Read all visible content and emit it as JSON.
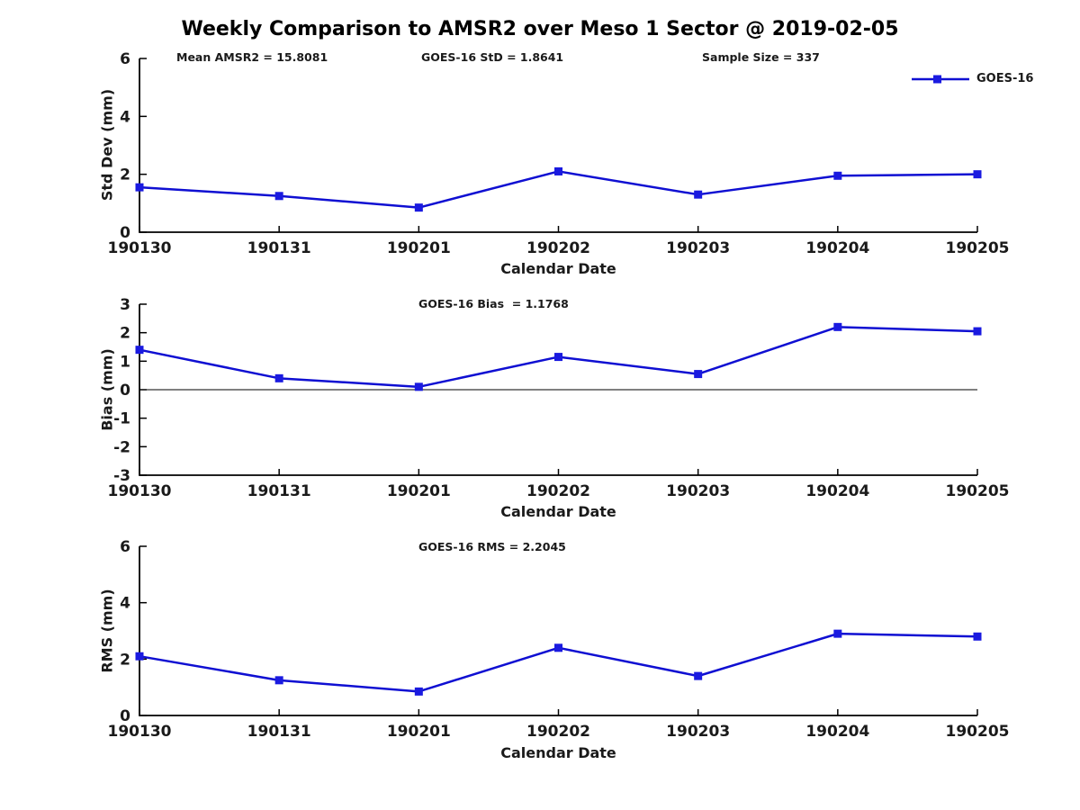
{
  "title": "Weekly Comparison to AMSR2 over Meso 1 Sector @ 2019-02-05",
  "colors": {
    "line": "#0f0fd2",
    "marker": "#1a1ae0",
    "axis": "#000000",
    "text": "#1a1a1a"
  },
  "legend": {
    "label": "GOES-16"
  },
  "chart_data": [
    {
      "type": "line",
      "subplot": "std-dev",
      "categories": [
        "190130",
        "190131",
        "190201",
        "190202",
        "190203",
        "190204",
        "190205"
      ],
      "series": [
        {
          "name": "GOES-16",
          "values": [
            1.55,
            1.25,
            0.85,
            2.1,
            1.3,
            1.95,
            2.0
          ]
        }
      ],
      "xlabel": "Calendar Date",
      "ylabel": "Std Dev (mm)",
      "ylim": [
        0,
        6
      ],
      "yticks": [
        0,
        2,
        4,
        6
      ],
      "grid": false,
      "zero_line": false,
      "legend_position": "top-right-outside",
      "annotations": [
        "Mean AMSR2 = 15.8081",
        "GOES-16 StD = 1.8641",
        "Sample Size = 337"
      ]
    },
    {
      "type": "line",
      "subplot": "bias",
      "categories": [
        "190130",
        "190131",
        "190201",
        "190202",
        "190203",
        "190204",
        "190205"
      ],
      "series": [
        {
          "name": "GOES-16",
          "values": [
            1.4,
            0.4,
            0.1,
            1.15,
            0.55,
            2.2,
            2.05
          ]
        }
      ],
      "xlabel": "Calendar Date",
      "ylabel": "Bias (mm)",
      "ylim": [
        -3,
        3
      ],
      "yticks": [
        -3,
        -2,
        -1,
        0,
        1,
        2,
        3
      ],
      "grid": false,
      "zero_line": true,
      "legend_position": "none",
      "annotations": [
        "GOES-16 Bias  = 1.1768"
      ]
    },
    {
      "type": "line",
      "subplot": "rms",
      "categories": [
        "190130",
        "190131",
        "190201",
        "190202",
        "190203",
        "190204",
        "190205"
      ],
      "series": [
        {
          "name": "GOES-16",
          "values": [
            2.1,
            1.25,
            0.85,
            2.4,
            1.4,
            2.9,
            2.8
          ]
        }
      ],
      "xlabel": "Calendar Date",
      "ylabel": "RMS (mm)",
      "ylim": [
        0,
        6
      ],
      "yticks": [
        0,
        2,
        4,
        6
      ],
      "grid": false,
      "zero_line": false,
      "legend_position": "none",
      "annotations": [
        "GOES-16 RMS = 2.2045"
      ]
    }
  ]
}
